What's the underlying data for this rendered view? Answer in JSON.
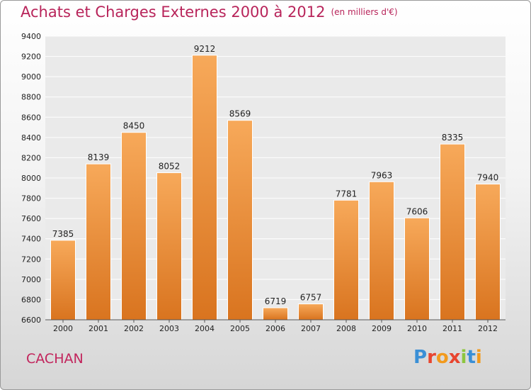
{
  "header": {
    "title": "Achats et Charges Externes 2000 à 2012",
    "subtitle": "(en milliers d'€)"
  },
  "footer": {
    "city": "CACHAN",
    "logo_text": "Proxiti",
    "logo_colors": [
      "#3a8fd6",
      "#e8452f",
      "#f29a1d",
      "#e8452f",
      "#8dc63f",
      "#3a8fd6",
      "#f29a1d"
    ]
  },
  "colors": {
    "bar_top": "#f7a95a",
    "bar_bottom": "#d9741f",
    "title": "#b8245a",
    "grid": "#ffffff"
  },
  "chart_data": {
    "type": "bar",
    "title": "Achats et Charges Externes 2000 à 2012",
    "categories": [
      "2000",
      "2001",
      "2002",
      "2003",
      "2004",
      "2005",
      "2006",
      "2007",
      "2008",
      "2009",
      "2010",
      "2011",
      "2012"
    ],
    "values": [
      7385,
      8139,
      8450,
      8052,
      9212,
      8569,
      6719,
      6757,
      7781,
      7963,
      7606,
      8335,
      7940
    ],
    "ylim": [
      6600,
      9400
    ],
    "yticks": [
      6600,
      6800,
      7000,
      7200,
      7400,
      7600,
      7800,
      8000,
      8200,
      8400,
      8600,
      8800,
      9000,
      9200,
      9400
    ],
    "grid": true,
    "data_labels": true
  }
}
